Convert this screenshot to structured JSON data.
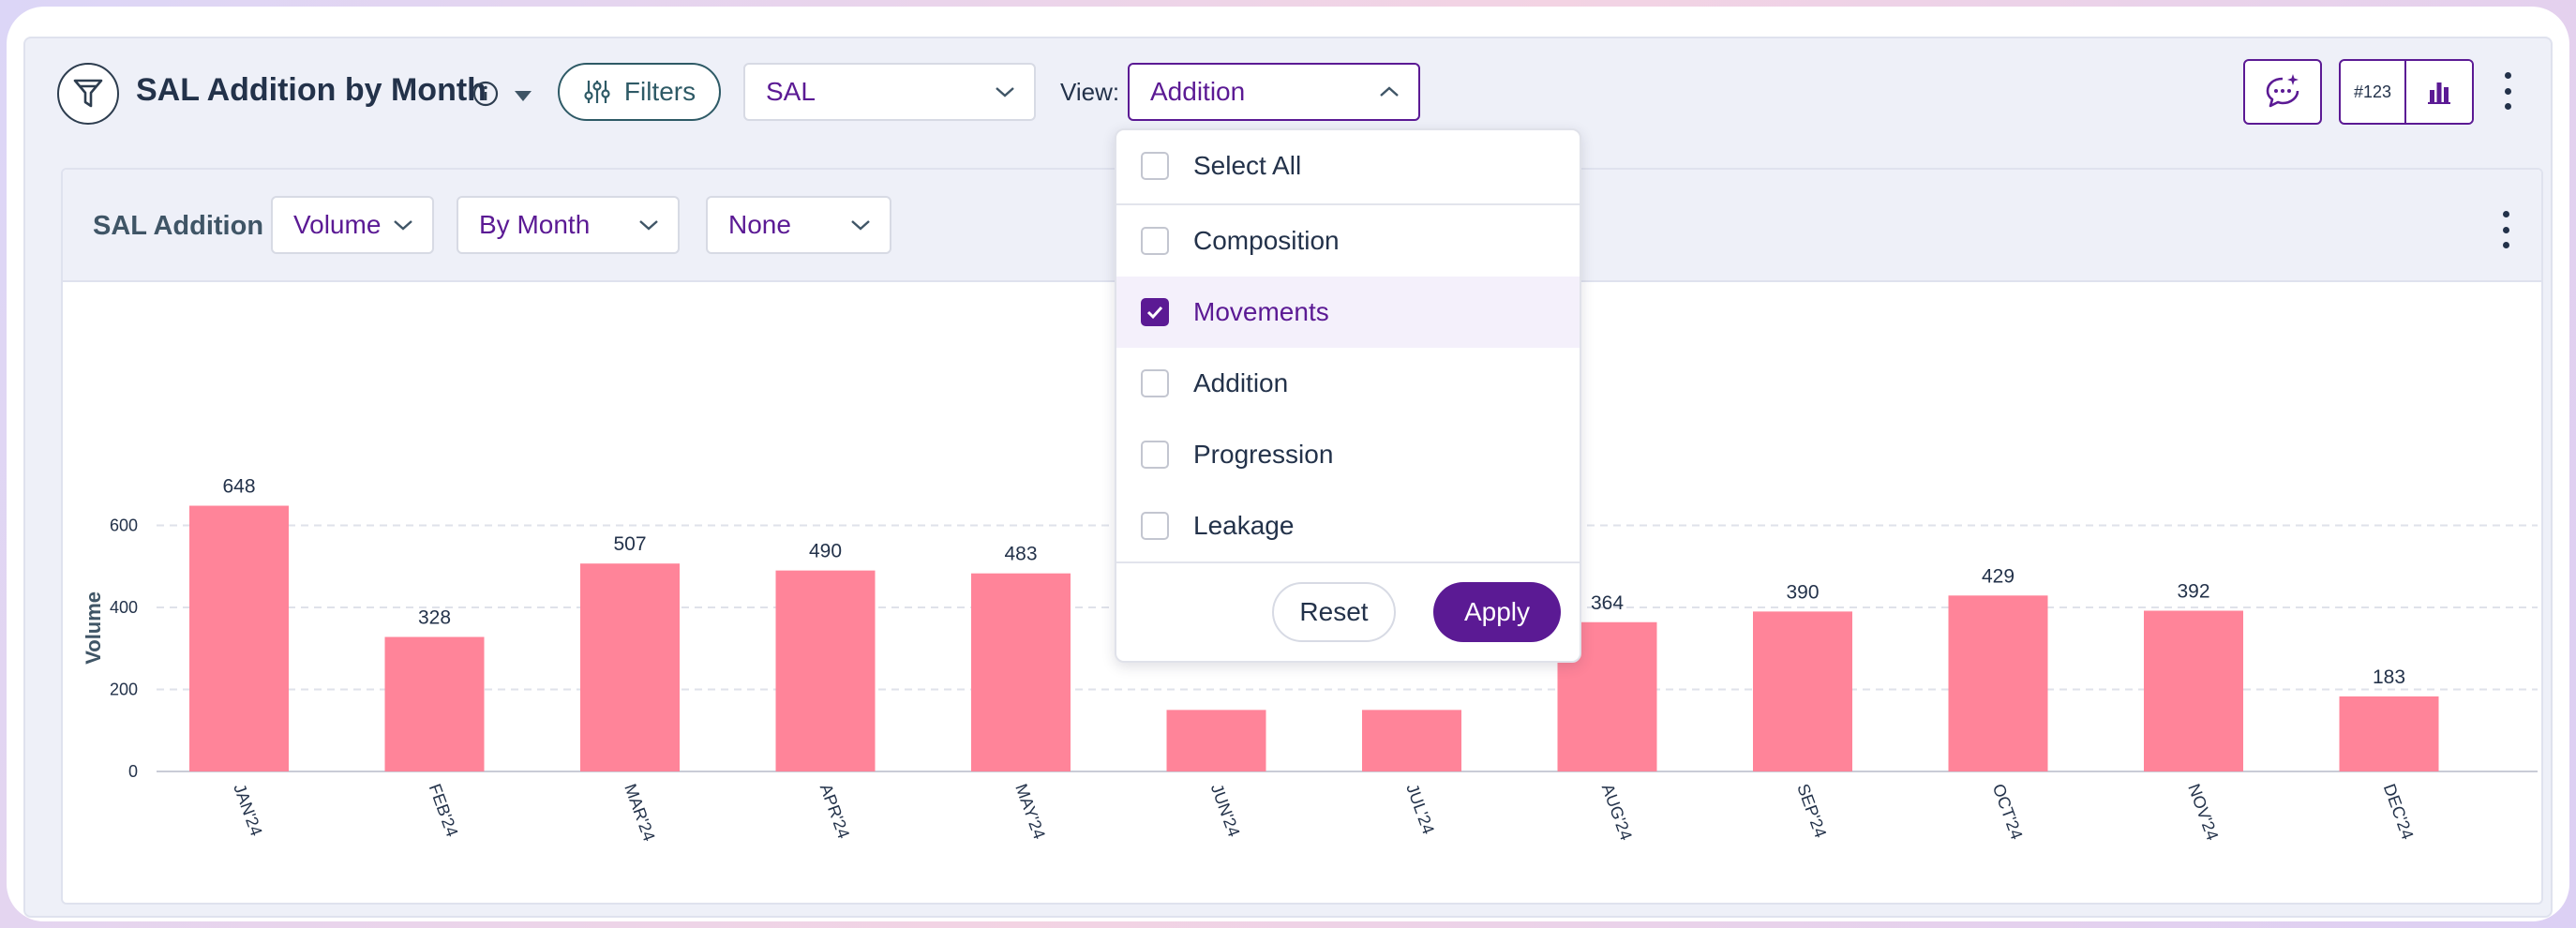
{
  "header": {
    "title": "SAL Addition by Month",
    "filters_label": "Filters",
    "dataset_select": "SAL",
    "view_label": "View:",
    "view_select": "Addition",
    "toggle_number_label": "#123"
  },
  "card": {
    "title": "SAL Addition",
    "measure_select": "Volume",
    "period_select": "By Month",
    "breakdown_select": "None"
  },
  "dropdown": {
    "items": [
      {
        "label": "Select All",
        "checked": false
      },
      {
        "label": "Composition",
        "checked": false
      },
      {
        "label": "Movements",
        "checked": true
      },
      {
        "label": "Addition",
        "checked": false
      },
      {
        "label": "Progression",
        "checked": false
      },
      {
        "label": "Leakage",
        "checked": false
      }
    ],
    "reset_label": "Reset",
    "apply_label": "Apply"
  },
  "colors": {
    "accent": "#5b1a94",
    "bar": "#ff8499",
    "text": "#23324a"
  },
  "chart_data": {
    "type": "bar",
    "title": "SAL Addition",
    "xlabel": "",
    "ylabel": "Volume",
    "ylim": [
      0,
      700
    ],
    "yticks": [
      0,
      200,
      400,
      600
    ],
    "grid": true,
    "categories": [
      "JAN'24",
      "FEB'24",
      "MAR'24",
      "APR'24",
      "MAY'24",
      "JUN'24",
      "JUL'24",
      "AUG'24",
      "SEP'24",
      "OCT'24",
      "NOV'24",
      "DEC'24"
    ],
    "values": [
      648,
      328,
      507,
      490,
      483,
      150,
      150,
      364,
      390,
      429,
      392,
      183
    ],
    "data_labels": [
      "648",
      "328",
      "507",
      "490",
      "483",
      "",
      "",
      "364",
      "390",
      "429",
      "392",
      "183"
    ]
  }
}
